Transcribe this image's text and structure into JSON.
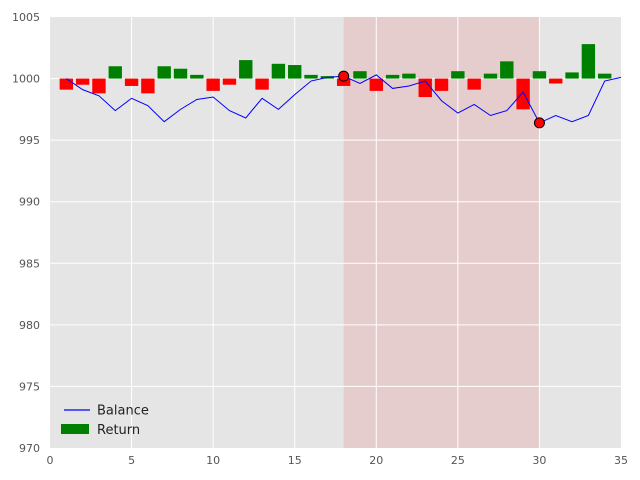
{
  "chart_data": {
    "type": "line",
    "title": "",
    "xlabel": "",
    "ylabel": "",
    "xlim": [
      0,
      35
    ],
    "ylim": [
      970,
      1005
    ],
    "xticks": [
      0,
      5,
      10,
      15,
      20,
      25,
      30,
      35
    ],
    "yticks": [
      970,
      975,
      980,
      985,
      990,
      995,
      1000,
      1005
    ],
    "grid": true,
    "legend_position": "bottom-left",
    "background_color": "#e5e5e5",
    "shaded_region": {
      "x_start": 18,
      "x_end": 30,
      "color": "#e8a0a0"
    },
    "series": [
      {
        "name": "Balance",
        "type": "line",
        "color": "#0000ff",
        "x": [
          1,
          2,
          3,
          4,
          5,
          6,
          7,
          8,
          9,
          10,
          11,
          12,
          13,
          14,
          15,
          16,
          17,
          18,
          19,
          20,
          21,
          22,
          23,
          24,
          25,
          26,
          27,
          28,
          29,
          30,
          31,
          32,
          33,
          34,
          35
        ],
        "values": [
          1000.0,
          999.1,
          998.6,
          997.4,
          998.4,
          997.8,
          996.5,
          997.5,
          998.3,
          998.5,
          997.4,
          996.8,
          998.4,
          997.5,
          998.7,
          999.8,
          1000.1,
          1000.2,
          999.6,
          1000.3,
          999.2,
          999.4,
          999.8,
          998.2,
          997.2,
          997.9,
          997.0,
          997.4,
          998.9,
          996.4,
          997.0,
          996.5,
          997.0,
          999.8,
          1000.1
        ]
      },
      {
        "name": "Return",
        "type": "bar",
        "color_positive": "#008000",
        "color_negative": "#ff0000",
        "x": [
          1,
          2,
          3,
          4,
          5,
          6,
          7,
          8,
          9,
          10,
          11,
          12,
          13,
          14,
          15,
          16,
          17,
          18,
          19,
          20,
          21,
          22,
          23,
          24,
          25,
          26,
          27,
          28,
          29,
          30,
          31,
          32,
          33,
          34,
          35
        ],
        "values": [
          -0.9,
          -0.5,
          -1.2,
          1.0,
          -0.6,
          -1.2,
          1.0,
          0.8,
          0.3,
          -1.0,
          -0.5,
          1.5,
          -0.9,
          1.2,
          1.1,
          0.3,
          0.2,
          -0.6,
          0.6,
          -1.0,
          0.3,
          0.4,
          -1.5,
          -1.0,
          0.6,
          -0.9,
          0.4,
          1.4,
          -2.5,
          0.6,
          -0.4,
          0.5,
          2.8,
          0.4,
          0.0
        ]
      }
    ],
    "markers": [
      {
        "x": 18,
        "y": 1000.2,
        "color": "#ff0000"
      },
      {
        "x": 30,
        "y": 996.4,
        "color": "#ff0000"
      }
    ]
  }
}
